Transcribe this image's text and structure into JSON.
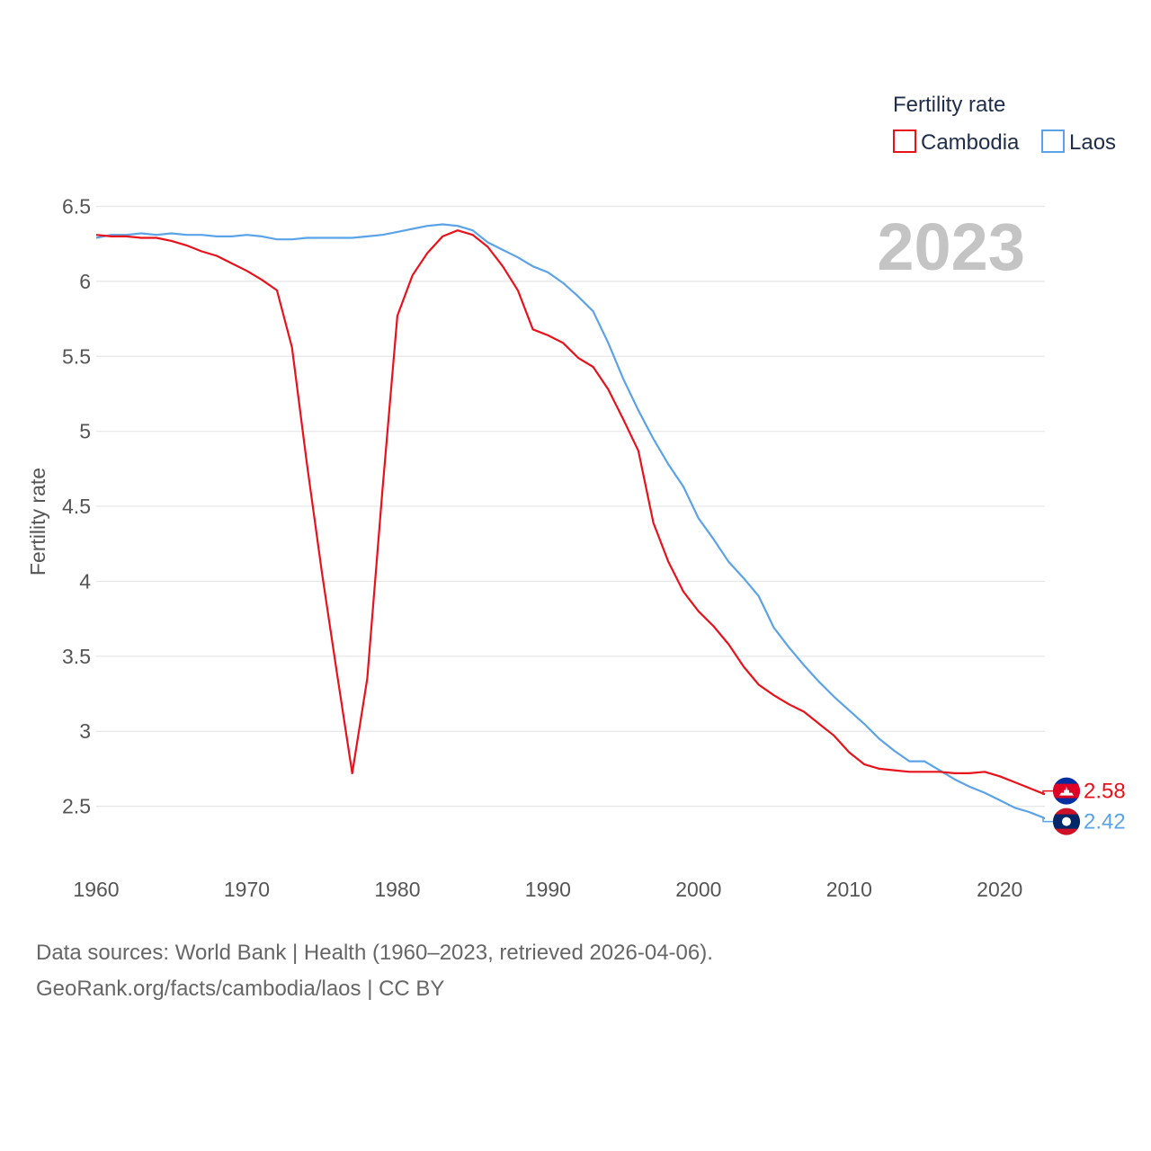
{
  "chart_data": {
    "type": "line",
    "ylabel": "Fertility rate",
    "xlabel": "",
    "legend_title": "Fertility rate",
    "legend_position": "top-right",
    "year_label": "2023",
    "xlim": [
      1960,
      2023
    ],
    "ylim": [
      2.0,
      6.5
    ],
    "x_ticks": [
      1960,
      1970,
      1980,
      1990,
      2000,
      2010,
      2020
    ],
    "x_tick_labels": [
      "1960",
      "1970",
      "1980",
      "1990",
      "2000",
      "2010",
      "2020"
    ],
    "y_ticks": [
      2.5,
      3,
      3.5,
      4,
      4.5,
      5,
      5.5,
      6,
      6.5
    ],
    "y_tick_labels": [
      "2.5",
      "3",
      "3.5",
      "4",
      "4.5",
      "5",
      "5.5",
      "6",
      "6.5"
    ],
    "grid": true,
    "x": [
      1960,
      1961,
      1962,
      1963,
      1964,
      1965,
      1966,
      1967,
      1968,
      1969,
      1970,
      1971,
      1972,
      1973,
      1974,
      1975,
      1976,
      1977,
      1978,
      1979,
      1980,
      1981,
      1982,
      1983,
      1984,
      1985,
      1986,
      1987,
      1988,
      1989,
      1990,
      1991,
      1992,
      1993,
      1994,
      1995,
      1996,
      1997,
      1998,
      1999,
      2000,
      2001,
      2002,
      2003,
      2004,
      2005,
      2006,
      2007,
      2008,
      2009,
      2010,
      2011,
      2012,
      2013,
      2014,
      2015,
      2016,
      2017,
      2018,
      2019,
      2020,
      2021,
      2022,
      2023
    ],
    "series": [
      {
        "name": "Cambodia",
        "color": "#e8121b",
        "end_label": "2.58",
        "flag_icon": "cambodia-flag-icon",
        "values": [
          6.31,
          6.3,
          6.3,
          6.29,
          6.29,
          6.27,
          6.24,
          6.2,
          6.17,
          6.12,
          6.07,
          6.01,
          5.94,
          5.56,
          4.78,
          4.05,
          3.38,
          2.72,
          3.35,
          4.6,
          5.77,
          6.04,
          6.19,
          6.3,
          6.34,
          6.31,
          6.23,
          6.1,
          5.94,
          5.68,
          5.64,
          5.59,
          5.49,
          5.43,
          5.28,
          5.08,
          4.87,
          4.39,
          4.13,
          3.93,
          3.8,
          3.7,
          3.58,
          3.43,
          3.31,
          3.24,
          3.18,
          3.13,
          3.05,
          2.97,
          2.86,
          2.78,
          2.75,
          2.74,
          2.73,
          2.73,
          2.73,
          2.72,
          2.72,
          2.73,
          2.7,
          2.66,
          2.62,
          2.58
        ]
      },
      {
        "name": "Laos",
        "color": "#5ba3e8",
        "end_label": "2.42",
        "flag_icon": "laos-flag-icon",
        "values": [
          6.29,
          6.31,
          6.31,
          6.32,
          6.31,
          6.32,
          6.31,
          6.31,
          6.3,
          6.3,
          6.31,
          6.3,
          6.28,
          6.28,
          6.29,
          6.29,
          6.29,
          6.29,
          6.3,
          6.31,
          6.33,
          6.35,
          6.37,
          6.38,
          6.37,
          6.34,
          6.26,
          6.21,
          6.16,
          6.1,
          6.06,
          5.99,
          5.9,
          5.8,
          5.59,
          5.35,
          5.14,
          4.95,
          4.78,
          4.63,
          4.42,
          4.28,
          4.13,
          4.02,
          3.9,
          3.69,
          3.56,
          3.44,
          3.33,
          3.23,
          3.14,
          3.05,
          2.95,
          2.87,
          2.8,
          2.8,
          2.74,
          2.68,
          2.63,
          2.59,
          2.54,
          2.49,
          2.46,
          2.42
        ]
      }
    ]
  },
  "footer": {
    "sources_line": "Data sources: World Bank | Health (1960–2023, retrieved 2026-04-06).",
    "attribution_line": "GeoRank.org/facts/cambodia/laos | CC BY"
  }
}
